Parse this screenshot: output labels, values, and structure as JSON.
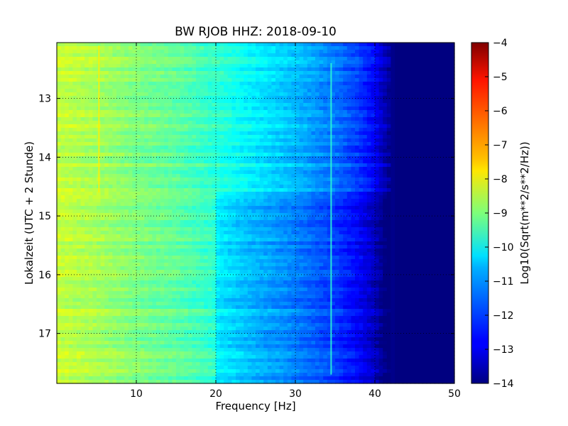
{
  "chart_data": {
    "type": "heatmap",
    "title": "BW RJOB HHZ: 2018-09-10",
    "xlabel": "Frequency [Hz]",
    "ylabel": "Lokalzeit (UTC + 2 Stunde)",
    "colorbar_label": "Log10(Sqrt(m**2/s**2/Hz))",
    "xlim": [
      0,
      50
    ],
    "ylim": [
      12.05,
      17.85
    ],
    "y_inverted": true,
    "grid": true,
    "colormap": "jet",
    "clim": [
      -14,
      -4
    ],
    "x_ticks": [
      {
        "value": 10,
        "label": "10"
      },
      {
        "value": 20,
        "label": "20"
      },
      {
        "value": 30,
        "label": "30"
      },
      {
        "value": 40,
        "label": "40"
      },
      {
        "value": 50,
        "label": "50"
      }
    ],
    "y_ticks": [
      {
        "value": 13,
        "label": "13"
      },
      {
        "value": 14,
        "label": "14"
      },
      {
        "value": 15,
        "label": "15"
      },
      {
        "value": 16,
        "label": "16"
      },
      {
        "value": 17,
        "label": "17"
      }
    ],
    "colorbar_ticks": [
      {
        "value": -4,
        "label": "−4"
      },
      {
        "value": -5,
        "label": "−5"
      },
      {
        "value": -6,
        "label": "−6"
      },
      {
        "value": -7,
        "label": "−7"
      },
      {
        "value": -8,
        "label": "−8"
      },
      {
        "value": -9,
        "label": "−9"
      },
      {
        "value": -10,
        "label": "−10"
      },
      {
        "value": -11,
        "label": "−11"
      },
      {
        "value": -12,
        "label": "−12"
      },
      {
        "value": -13,
        "label": "−13"
      },
      {
        "value": -14,
        "label": "−14"
      }
    ],
    "frequency_profile": [
      {
        "freq": 0,
        "value": -8.3
      },
      {
        "freq": 5,
        "value": -8.6
      },
      {
        "freq": 10,
        "value": -9.0
      },
      {
        "freq": 15,
        "value": -9.3
      },
      {
        "freq": 20,
        "value": -9.8
      },
      {
        "freq": 25,
        "value": -10.4
      },
      {
        "freq": 30,
        "value": -10.9
      },
      {
        "freq": 35,
        "value": -11.6
      },
      {
        "freq": 38,
        "value": -12.2
      },
      {
        "freq": 40,
        "value": -12.8
      },
      {
        "freq": 41.5,
        "value": -13.6
      },
      {
        "freq": 42.5,
        "value": -14.0
      },
      {
        "freq": 50,
        "value": -14.0
      }
    ],
    "features": [
      {
        "type": "vertical_line",
        "freq": 5.3,
        "t_start": 12.1,
        "t_end": 14.6,
        "value": -7.6
      },
      {
        "type": "vertical_line",
        "freq": 34.5,
        "t_start": 12.4,
        "t_end": 17.7,
        "value": -9.8
      },
      {
        "type": "quiet_band",
        "t_start": 14.58,
        "t_end": 17.85,
        "offset": -0.6
      }
    ]
  }
}
